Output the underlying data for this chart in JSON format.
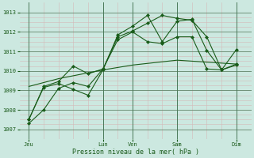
{
  "title": "",
  "xlabel": "Pression niveau de la mer( hPa )",
  "ylim": [
    1006.5,
    1013.5
  ],
  "yticks": [
    1007,
    1008,
    1009,
    1010,
    1011,
    1012,
    1013
  ],
  "xtick_labels": [
    "Jeu",
    "Lun",
    "Ven",
    "Sam",
    "Dim"
  ],
  "xtick_positions": [
    0,
    40,
    56,
    80,
    112
  ],
  "xlim": [
    -5,
    120
  ],
  "bg_color": "#cce8e0",
  "line_color": "#1a5c1a",
  "grid_minor_color": "#d4b8b8",
  "grid_major_color": "#4a7a5a",
  "vline_positions": [
    0,
    40,
    56,
    80,
    112
  ],
  "lines": [
    {
      "x": [
        0,
        8,
        16,
        24,
        32,
        40,
        48,
        56,
        64,
        72,
        80,
        88,
        96,
        104,
        112
      ],
      "y": [
        1007.3,
        1008.0,
        1009.1,
        1009.4,
        1009.2,
        1010.1,
        1011.6,
        1012.0,
        1011.5,
        1011.4,
        1011.75,
        1011.75,
        1010.1,
        1010.05,
        1010.3
      ],
      "style": "-",
      "marker": "D",
      "markersize": 2.0,
      "linewidth": 0.8
    },
    {
      "x": [
        0,
        8,
        16,
        24,
        32,
        40,
        48,
        56,
        64,
        72,
        80,
        88,
        96,
        104,
        112
      ],
      "y": [
        1007.5,
        1009.15,
        1009.35,
        1009.05,
        1008.75,
        1010.05,
        1011.85,
        1012.3,
        1012.85,
        1011.5,
        1012.55,
        1012.65,
        1011.05,
        1010.05,
        1010.35
      ],
      "style": "-",
      "marker": "D",
      "markersize": 2.0,
      "linewidth": 0.8
    },
    {
      "x": [
        0,
        8,
        16,
        24,
        32,
        40,
        48,
        56,
        64,
        72,
        80,
        88,
        96,
        104,
        112
      ],
      "y": [
        1007.5,
        1009.2,
        1009.45,
        1010.25,
        1009.85,
        1010.1,
        1011.75,
        1012.05,
        1012.45,
        1012.85,
        1012.7,
        1012.6,
        1011.75,
        1010.05,
        1011.1
      ],
      "style": "-",
      "marker": "D",
      "markersize": 2.0,
      "linewidth": 0.8
    },
    {
      "x": [
        0,
        16,
        40,
        56,
        80,
        112
      ],
      "y": [
        1009.2,
        1009.6,
        1010.05,
        1010.3,
        1010.55,
        1010.35
      ],
      "style": "-",
      "marker": null,
      "linewidth": 0.8
    }
  ],
  "figsize": [
    3.2,
    2.0
  ],
  "dpi": 100
}
